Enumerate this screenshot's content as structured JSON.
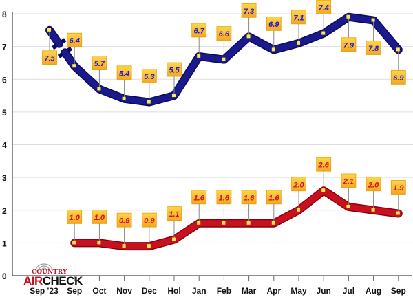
{
  "chart_data": {
    "type": "line",
    "title": "",
    "xlabel": "",
    "ylabel": "",
    "ylim": [
      0,
      8
    ],
    "yticks": [
      "0",
      "1",
      "2",
      "3",
      "4",
      "5",
      "6",
      "7",
      "8"
    ],
    "categories": [
      "Sep '23",
      "Sep",
      "Oct",
      "Nov",
      "Dec",
      "Hol",
      "Jan",
      "Feb",
      "Mar",
      "Apr",
      "May",
      "Jun",
      "Jul",
      "Aug",
      "Sep"
    ],
    "grid": true,
    "series": [
      {
        "name": "upper",
        "color": "#1a1a8c",
        "values": [
          7.5,
          6.4,
          5.7,
          5.4,
          5.3,
          5.5,
          6.7,
          6.6,
          7.3,
          6.9,
          7.1,
          7.4,
          7.9,
          7.8,
          6.9
        ],
        "labels": [
          "7.5",
          "6.4",
          "5.7",
          "5.4",
          "5.3",
          "5.5",
          "6.7",
          "6.6",
          "7.3",
          "6.9",
          "7.1",
          "7.4",
          "7.9",
          "7.8",
          "6.9"
        ],
        "label_side": [
          "below",
          "above",
          "above",
          "above",
          "above",
          "above",
          "above",
          "above",
          "above",
          "above",
          "above",
          "above",
          "below",
          "below",
          "below"
        ]
      },
      {
        "name": "lower",
        "color": "#c8101e",
        "values": [
          null,
          1.0,
          1.0,
          0.9,
          0.9,
          1.1,
          1.6,
          1.6,
          1.6,
          1.6,
          2.0,
          2.6,
          2.1,
          2.0,
          1.9
        ],
        "labels": [
          null,
          "1.0",
          "1.0",
          "0.9",
          "0.9",
          "1.1",
          "1.6",
          "1.6",
          "1.6",
          "1.6",
          "2.0",
          "2.6",
          "2.1",
          "2.0",
          "1.9"
        ],
        "label_side": "above"
      }
    ]
  },
  "logo": {
    "line1": "COUNTRY",
    "line2a": "AIR",
    "line2b": "CHECK"
  }
}
